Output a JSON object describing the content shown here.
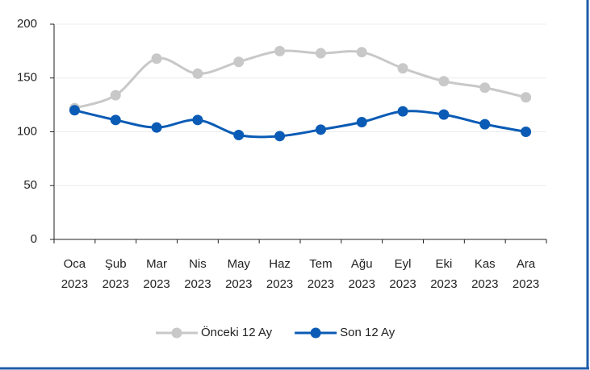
{
  "chart_data": {
    "type": "line",
    "categories": [
      "Oca 2023",
      "Şub 2023",
      "Mar 2023",
      "Nis 2023",
      "May 2023",
      "Haz 2023",
      "Tem 2023",
      "Ağu 2023",
      "Eyl 2023",
      "Eki 2023",
      "Kas 2023",
      "Ara 2023"
    ],
    "series": [
      {
        "name": "Önceki 12 Ay",
        "color": "#c8c8c8",
        "values": [
          122,
          134,
          168,
          154,
          165,
          175,
          173,
          174,
          159,
          147,
          141,
          132
        ]
      },
      {
        "name": "Son 12 Ay",
        "color": "#0a5bb5",
        "values": [
          120,
          111,
          104,
          111,
          97,
          96,
          102,
          109,
          119,
          116,
          107,
          100
        ]
      }
    ],
    "ylim": [
      0,
      200
    ],
    "yticks": [
      0,
      50,
      100,
      150,
      200
    ],
    "grid": true,
    "smooth": true,
    "legend": "bottom"
  }
}
